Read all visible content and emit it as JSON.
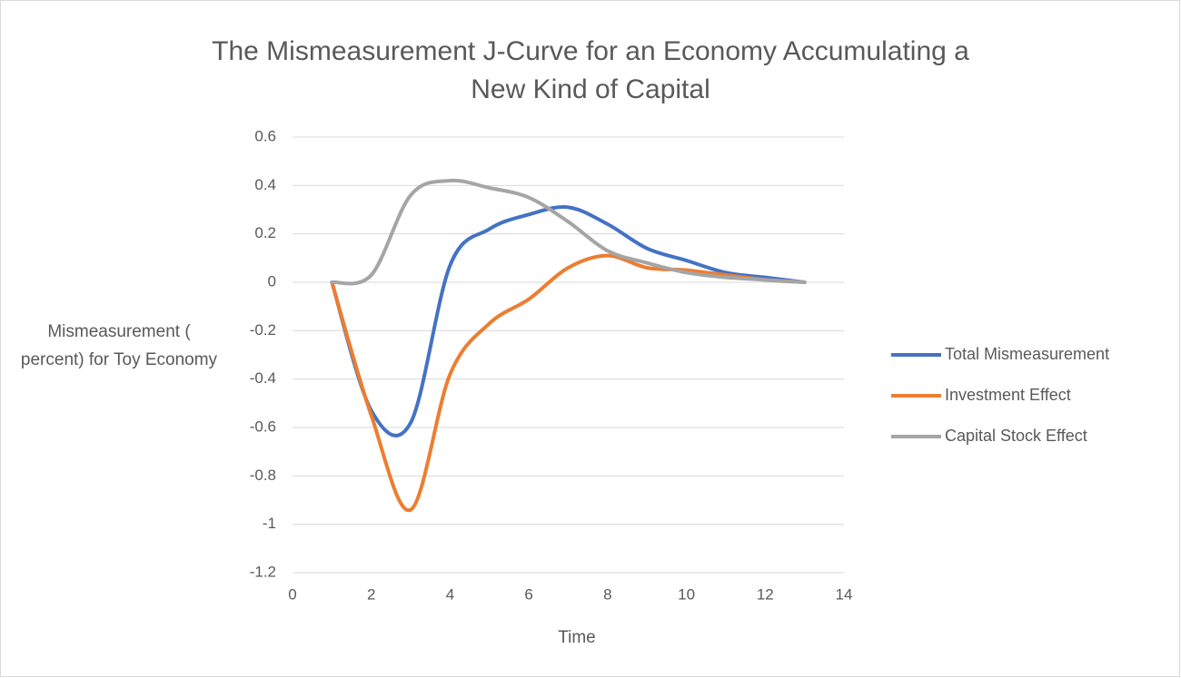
{
  "chart_data": {
    "type": "line",
    "title": "The Mismeasurement J-Curve for an Economy Accumulating a New Kind of Capital",
    "x_label": "Time",
    "y_label": "Mismeasurement ( percent) for Toy Economy",
    "x": [
      1,
      2,
      3,
      4,
      5,
      6,
      7,
      8,
      9,
      10,
      11,
      12,
      13
    ],
    "series": [
      {
        "name": "Total Mismeasurement",
        "color": "#4472c4",
        "values": [
          0,
          -0.53,
          -0.58,
          0.07,
          0.22,
          0.28,
          0.31,
          0.24,
          0.14,
          0.09,
          0.04,
          0.02,
          0
        ]
      },
      {
        "name": "Investment Effect",
        "color": "#ed7d31",
        "values": [
          0,
          -0.55,
          -0.94,
          -0.38,
          -0.17,
          -0.07,
          0.06,
          0.11,
          0.06,
          0.05,
          0.03,
          0.01,
          0
        ]
      },
      {
        "name": "Capital Stock Effect",
        "color": "#a5a5a5",
        "values": [
          0,
          0.03,
          0.36,
          0.42,
          0.39,
          0.35,
          0.25,
          0.13,
          0.08,
          0.04,
          0.02,
          0.01,
          0
        ]
      }
    ],
    "xlim": [
      0,
      14
    ],
    "xticks": [
      0,
      2,
      4,
      6,
      8,
      10,
      12,
      14
    ],
    "ylim": [
      -1.2,
      0.6
    ],
    "yticks": [
      -1.2,
      -1,
      -0.8,
      -0.6,
      -0.4,
      -0.2,
      0,
      0.2,
      0.4,
      0.6
    ],
    "grid": true,
    "smooth": true,
    "legend": "right"
  }
}
